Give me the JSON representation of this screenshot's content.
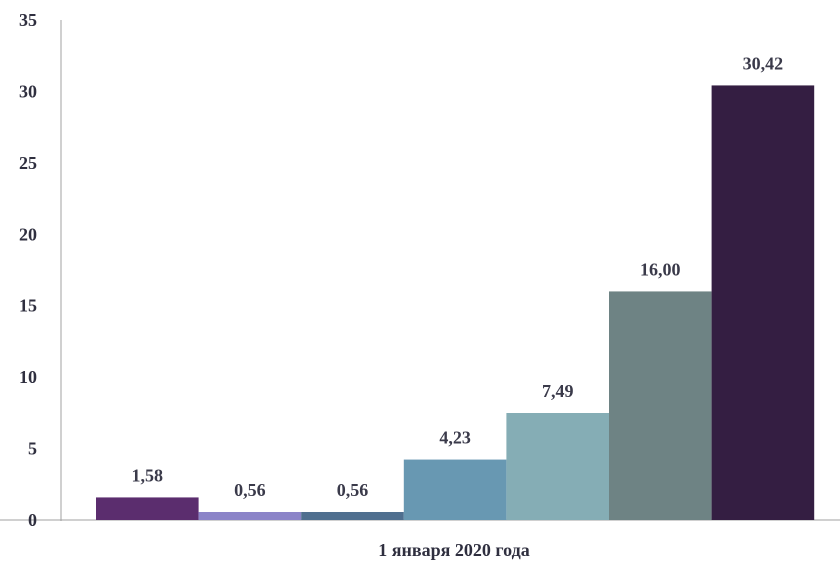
{
  "chart_data": {
    "type": "bar",
    "categories": [
      "1 января 2020 года"
    ],
    "series": [
      {
        "values": [
          1.58
        ],
        "label": "1,58",
        "color": "#5b2d6e"
      },
      {
        "values": [
          0.56
        ],
        "label": "0,56",
        "color": "#8b84c8"
      },
      {
        "values": [
          0.56
        ],
        "label": "0,56",
        "color": "#4f6f8f"
      },
      {
        "values": [
          4.23
        ],
        "label": "4,23",
        "color": "#6898b2"
      },
      {
        "values": [
          7.49
        ],
        "label": "7,49",
        "color": "#85adb5"
      },
      {
        "values": [
          16.0
        ],
        "label": "16,00",
        "color": "#6e8384"
      },
      {
        "values": [
          30.42
        ],
        "label": "30,42",
        "color": "#341e42"
      }
    ],
    "ylim": [
      0,
      35
    ],
    "yticks": [
      0,
      5,
      10,
      15,
      20,
      25,
      30,
      35
    ],
    "grid": false,
    "title": "",
    "xlabel": "",
    "ylabel": ""
  }
}
